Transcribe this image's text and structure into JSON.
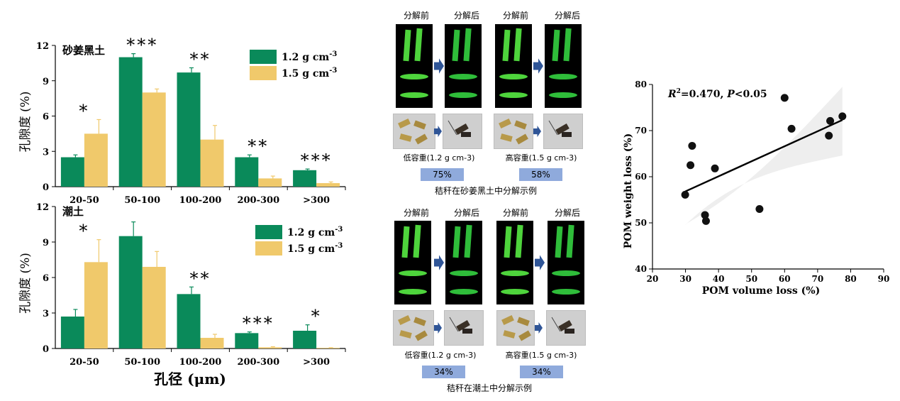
{
  "bar_panels": [
    {
      "label": "砂姜黑土",
      "categories": [
        "20-50",
        "50-100",
        "100-200",
        "200-300",
        ">300"
      ],
      "series": [
        {
          "name": "1.2 g cm-3",
          "values": [
            2.5,
            11.0,
            9.7,
            2.5,
            1.4
          ],
          "errors": [
            0.2,
            0.3,
            0.4,
            0.2,
            0.1
          ],
          "color": "#0a8a5a"
        },
        {
          "name": "1.5 g cm-3",
          "values": [
            4.5,
            8.0,
            4.0,
            0.7,
            0.3
          ],
          "errors": [
            1.2,
            0.3,
            1.2,
            0.2,
            0.1
          ],
          "color": "#f0c96b"
        }
      ],
      "significance": [
        "*",
        "***",
        "**",
        "**",
        "***"
      ],
      "ylim": [
        0,
        12
      ],
      "yticks": [
        "0",
        "3",
        "6",
        "9",
        "12"
      ],
      "ylabel": "孔隙度 (%)"
    },
    {
      "label": "潮土",
      "categories": [
        "20-50",
        "50-100",
        "100-200",
        "200-300",
        ">300"
      ],
      "series": [
        {
          "name": "1.2 g cm-3",
          "values": [
            2.7,
            9.5,
            4.6,
            1.3,
            1.5
          ],
          "errors": [
            0.6,
            1.2,
            0.6,
            0.1,
            0.5
          ],
          "color": "#0a8a5a"
        },
        {
          "name": "1.5 g cm-3",
          "values": [
            7.3,
            6.9,
            0.9,
            0.1,
            0.05
          ],
          "errors": [
            1.9,
            1.3,
            0.3,
            0.05,
            0.02
          ],
          "color": "#f0c96b"
        }
      ],
      "significance": [
        "*",
        "",
        "**",
        "***",
        "*"
      ],
      "ylim": [
        0,
        12
      ],
      "yticks": [
        "0",
        "3",
        "6",
        "9",
        "12"
      ],
      "ylabel": "孔隙度 (%)"
    }
  ],
  "xlabel": "孔径 (μm)",
  "legend_unit": "g cm",
  "legend_values": [
    "1.2",
    "1.5"
  ],
  "legend_exp": "-3",
  "middle": {
    "top": {
      "before": "分解前",
      "after": "分解后",
      "low_label": "低容重(1.2 g cm-3)",
      "high_label": "高容重(1.5 g cm-3)",
      "low_pct": "75%",
      "high_pct": "58%",
      "caption": "秸秆在砂姜黑土中分解示例"
    },
    "bottom": {
      "before": "分解前",
      "after": "分解后",
      "low_label": "低容重(1.2 g cm-3)",
      "high_label": "高容重(1.5 g cm-3)",
      "low_pct": "34%",
      "high_pct": "34%",
      "caption": "秸秆在潮土中分解示例"
    }
  },
  "chart_data": [
    {
      "type": "bar",
      "title": "砂姜黑土",
      "categories": [
        "20-50",
        "50-100",
        "100-200",
        "200-300",
        ">300"
      ],
      "series": [
        {
          "name": "1.2 g cm-3",
          "values": [
            2.5,
            11.0,
            9.7,
            2.5,
            1.4
          ]
        },
        {
          "name": "1.5 g cm-3",
          "values": [
            4.5,
            8.0,
            4.0,
            0.7,
            0.3
          ]
        }
      ],
      "xlabel": "孔径 (μm)",
      "ylabel": "孔隙度 (%)",
      "ylim": [
        0,
        12
      ]
    },
    {
      "type": "bar",
      "title": "潮土",
      "categories": [
        "20-50",
        "50-100",
        "100-200",
        "200-300",
        ">300"
      ],
      "series": [
        {
          "name": "1.2 g cm-3",
          "values": [
            2.7,
            9.5,
            4.6,
            1.3,
            1.5
          ]
        },
        {
          "name": "1.5 g cm-3",
          "values": [
            7.3,
            6.9,
            0.9,
            0.1,
            0.05
          ]
        }
      ],
      "xlabel": "孔径 (μm)",
      "ylabel": "孔隙度 (%)",
      "ylim": [
        0,
        12
      ]
    },
    {
      "type": "scatter",
      "annotation": "R2=0.470, P<0.05",
      "xlabel": "POM volume loss (%)",
      "ylabel": "POM weight loss (%)",
      "xlim": [
        20,
        90
      ],
      "ylim": [
        40,
        80
      ],
      "xticks": [
        "20",
        "30",
        "40",
        "50",
        "60",
        "70",
        "80",
        "90"
      ],
      "yticks": [
        "40",
        "50",
        "60",
        "70",
        "80"
      ],
      "x": [
        29.9,
        31.5,
        32.0,
        38.9,
        35.9,
        36.2,
        52.4,
        60.0,
        62.1,
        73.4,
        73.8,
        77.5
      ],
      "y": [
        56.1,
        62.5,
        66.7,
        61.8,
        51.7,
        50.4,
        53.0,
        77.1,
        70.4,
        68.9,
        72.1,
        73.1
      ],
      "fit": {
        "x": [
          29.9,
          77.5
        ],
        "y": [
          56.8,
          72.3
        ]
      },
      "band": {
        "upper_left": 49.7,
        "upper_right": 79.5,
        "lower_left": 49.6,
        "lower_right": 64.6
      }
    }
  ]
}
